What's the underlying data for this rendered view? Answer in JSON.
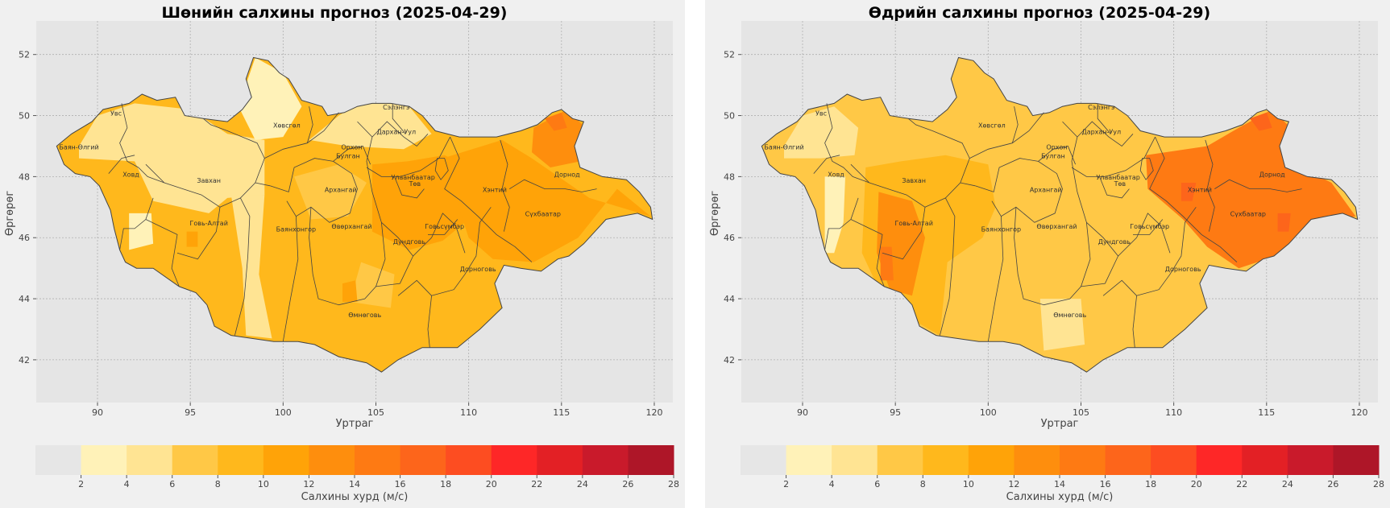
{
  "panels": [
    {
      "title": "Шөнийн салхины прогноз (2025-04-29)",
      "xlabel": "Уртраг",
      "ylabel": "Өргөрөг",
      "colorbar_label": "Салхины хурд (м/с)",
      "x_ticks": [
        "90",
        "95",
        "100",
        "105",
        "110",
        "115",
        "120"
      ],
      "y_ticks": [
        "52",
        "50",
        "48",
        "46",
        "44",
        "42"
      ],
      "region_labels": [
        "Увс",
        "Баян-Өлгий",
        "Ховд",
        "Завхан",
        "Хөвсгөл",
        "Сэлэнгэ",
        "Дархан-Уул",
        "Орхон",
        "Булган",
        "Архангай",
        "Улаанбаатар",
        "Төв",
        "Хэнтий",
        "Дорнод",
        "Говь-Алтай",
        "Баянхонгор",
        "Өвөрхангай",
        "Дундговь",
        "Говьсүмбэр",
        "Сүхбаатар",
        "Дорноговь",
        "Өмнөговь"
      ]
    },
    {
      "title": "Өдрийн салхины прогноз (2025-04-29)",
      "xlabel": "Уртраг",
      "ylabel": "Өргөрөг",
      "colorbar_label": "Салхины хурд (м/с)",
      "x_ticks": [
        "90",
        "95",
        "100",
        "105",
        "110",
        "115",
        "120"
      ],
      "y_ticks": [
        "52",
        "50",
        "48",
        "46",
        "44",
        "42"
      ],
      "region_labels": [
        "Увс",
        "Баян-Өлгий",
        "Ховд",
        "Завхан",
        "Хөвсгөл",
        "Сэлэнгэ",
        "Дархан-Уул",
        "Орхон",
        "Булган",
        "Архангай",
        "Улаанбаатар",
        "Төв",
        "Хэнтий",
        "Дорнод",
        "Говь-Алтай",
        "Баянхонгор",
        "Өвөрхангай",
        "Дундговь",
        "Говьсүмбэр",
        "Сүхбаатар",
        "Дорноговь",
        "Өмнөговь"
      ]
    }
  ],
  "colorbar": {
    "ticks": [
      "2",
      "4",
      "6",
      "8",
      "10",
      "12",
      "14",
      "16",
      "18",
      "20",
      "22",
      "24",
      "26",
      "28"
    ],
    "colors": [
      "#e6e6e6",
      "#fff2b8",
      "#ffe493",
      "#ffc846",
      "#ffb81c",
      "#ffa308",
      "#fe8e0d",
      "#fe7a13",
      "#fd651b",
      "#fd4d21",
      "#fe2727",
      "#e32025",
      "#c91a2b",
      "#ae1628"
    ]
  },
  "maps": {
    "night": {
      "base_color": "#ffb81c",
      "zones": [
        {
          "c": "#ffe493",
          "pts": [
            [
              89,
              49
            ],
            [
              90,
              50
            ],
            [
              92,
              50.4
            ],
            [
              95,
              50.2
            ],
            [
              97,
              49.4
            ],
            [
              99,
              49.2
            ],
            [
              99,
              47.4
            ],
            [
              97,
              47.3
            ],
            [
              96,
              46.8
            ],
            [
              93,
              47.2
            ],
            [
              92,
              48.5
            ],
            [
              89,
              48.6
            ]
          ]
        },
        {
          "c": "#fff2b8",
          "pts": [
            [
              91.7,
              46.8
            ],
            [
              92.9,
              46.8
            ],
            [
              93,
              45.8
            ],
            [
              91.7,
              45.6
            ]
          ]
        },
        {
          "c": "#fff2b8",
          "pts": [
            [
              98.5,
              51.9
            ],
            [
              100,
              51.4
            ],
            [
              101,
              50.3
            ],
            [
              100,
              49.3
            ],
            [
              98.5,
              49.2
            ],
            [
              97.6,
              50.3
            ]
          ]
        },
        {
          "c": "#ffe493",
          "pts": [
            [
              97.2,
              47.4
            ],
            [
              99,
              47.4
            ],
            [
              98.7,
              44.8
            ],
            [
              99.4,
              42.7
            ],
            [
              98,
              42.8
            ],
            [
              97.8,
              45
            ]
          ]
        },
        {
          "c": "#ffe493",
          "pts": [
            [
              101.4,
              49.2
            ],
            [
              103,
              50
            ],
            [
              104.6,
              50.6
            ],
            [
              106.8,
              50.3
            ],
            [
              108,
              49.4
            ],
            [
              106.5,
              48.9
            ],
            [
              103.5,
              49
            ]
          ]
        },
        {
          "c": "#ffc846",
          "pts": [
            [
              100.6,
              48
            ],
            [
              103,
              48.4
            ],
            [
              104.5,
              47.8
            ],
            [
              103.5,
              46.7
            ],
            [
              101.5,
              46.6
            ]
          ]
        },
        {
          "c": "#ffa308",
          "pts": [
            [
              104.8,
              48.4
            ],
            [
              106.7,
              48.5
            ],
            [
              108.7,
              48.7
            ],
            [
              110,
              48.3
            ],
            [
              110,
              46.6
            ],
            [
              108.6,
              45.9
            ],
            [
              106.8,
              45.6
            ],
            [
              104.8,
              46.2
            ]
          ]
        },
        {
          "c": "#ffa308",
          "pts": [
            [
              108.6,
              48.6
            ],
            [
              111.8,
              49.2
            ],
            [
              113.4,
              48.6
            ],
            [
              116.5,
              47.3
            ],
            [
              119.8,
              46.7
            ],
            [
              118,
              47.6
            ],
            [
              115.9,
              46
            ],
            [
              113.5,
              45.2
            ],
            [
              111.3,
              45.3
            ],
            [
              110,
              46
            ]
          ]
        },
        {
          "c": "#fe8e0d",
          "pts": [
            [
              113.5,
              49.6
            ],
            [
              115.3,
              50.2
            ],
            [
              116.3,
              49.6
            ],
            [
              116,
              48.5
            ],
            [
              114.4,
              48.3
            ],
            [
              113.4,
              48.8
            ]
          ]
        },
        {
          "c": "#fe7a13",
          "pts": [
            [
              114.1,
              49.9
            ],
            [
              115,
              50.1
            ],
            [
              115.3,
              49.6
            ],
            [
              114.6,
              49.5
            ]
          ]
        },
        {
          "c": "#ffc846",
          "pts": [
            [
              104.2,
              45.2
            ],
            [
              106,
              44.8
            ],
            [
              105.8,
              43.7
            ],
            [
              103.6,
              43.9
            ]
          ]
        },
        {
          "c": "#ffa308",
          "pts": [
            [
              103.2,
              44.5
            ],
            [
              103.9,
              44.6
            ],
            [
              104,
              43.9
            ],
            [
              103.2,
              43.9
            ]
          ]
        },
        {
          "c": "#ffa308",
          "pts": [
            [
              94.8,
              46.2
            ],
            [
              95.4,
              46.2
            ],
            [
              95.4,
              45.7
            ],
            [
              94.8,
              45.7
            ]
          ]
        }
      ]
    },
    "day": {
      "base_color": "#ffc846",
      "zones": [
        {
          "c": "#ffe493",
          "pts": [
            [
              89,
              49
            ],
            [
              90,
              50
            ],
            [
              91.7,
              50.3
            ],
            [
              93,
              49.6
            ],
            [
              92.8,
              48.7
            ],
            [
              91,
              48.6
            ],
            [
              89,
              48.6
            ]
          ]
        },
        {
          "c": "#fff2b8",
          "pts": [
            [
              91.2,
              48
            ],
            [
              92.3,
              48
            ],
            [
              92.2,
              46.5
            ],
            [
              91.7,
              45.5
            ],
            [
              91.2,
              45.5
            ]
          ]
        },
        {
          "c": "#ffb81c",
          "pts": [
            [
              93.4,
              48.3
            ],
            [
              95.3,
              48.5
            ],
            [
              97.7,
              48.7
            ],
            [
              100,
              48.4
            ],
            [
              100.4,
              47
            ],
            [
              99.7,
              46
            ],
            [
              97.8,
              45.2
            ],
            [
              97.4,
              42.8
            ],
            [
              94.5,
              43.8
            ],
            [
              93.2,
              45.5
            ]
          ]
        },
        {
          "c": "#fe8e0d",
          "pts": [
            [
              94.1,
              47.5
            ],
            [
              95.9,
              47.2
            ],
            [
              96.6,
              46
            ],
            [
              95.9,
              44.1
            ],
            [
              94.7,
              44.3
            ],
            [
              94,
              45.5
            ]
          ]
        },
        {
          "c": "#fe7a13",
          "pts": [
            [
              94.2,
              45.7
            ],
            [
              94.8,
              45.7
            ],
            [
              94.9,
              44.6
            ],
            [
              94.2,
              44.6
            ]
          ]
        },
        {
          "c": "#fe7a13",
          "pts": [
            [
              108.5,
              48.7
            ],
            [
              111.8,
              49
            ],
            [
              113.5,
              49.6
            ],
            [
              115.3,
              50.2
            ],
            [
              116.3,
              49.6
            ],
            [
              116.2,
              48.5
            ],
            [
              118.5,
              47.8
            ],
            [
              119.8,
              46.7
            ],
            [
              117.2,
              46.4
            ],
            [
              115.5,
              45.4
            ],
            [
              113.5,
              45
            ],
            [
              111.8,
              45.7
            ],
            [
              110.5,
              46.6
            ],
            [
              108.6,
              47.6
            ]
          ]
        },
        {
          "c": "#fd651b",
          "pts": [
            [
              114.1,
              49.9
            ],
            [
              115,
              50.1
            ],
            [
              115.3,
              49.6
            ],
            [
              114.6,
              49.5
            ]
          ]
        },
        {
          "c": "#fd651b",
          "pts": [
            [
              110.4,
              47.8
            ],
            [
              111.2,
              47.8
            ],
            [
              111,
              47.2
            ],
            [
              110.4,
              47.2
            ]
          ]
        },
        {
          "c": "#fd651b",
          "pts": [
            [
              115.6,
              46.8
            ],
            [
              116.3,
              46.8
            ],
            [
              116.2,
              46.2
            ],
            [
              115.6,
              46.2
            ]
          ]
        },
        {
          "c": "#fff2b8",
          "pts": [
            [
              103.4,
              43.5
            ],
            [
              104.3,
              43.5
            ],
            [
              104.3,
              42.8
            ],
            [
              103.4,
              42.8
            ]
          ]
        },
        {
          "c": "#ffe493",
          "pts": [
            [
              102.8,
              44
            ],
            [
              105,
              44
            ],
            [
              105.2,
              42.5
            ],
            [
              103,
              42.3
            ]
          ]
        }
      ]
    }
  }
}
